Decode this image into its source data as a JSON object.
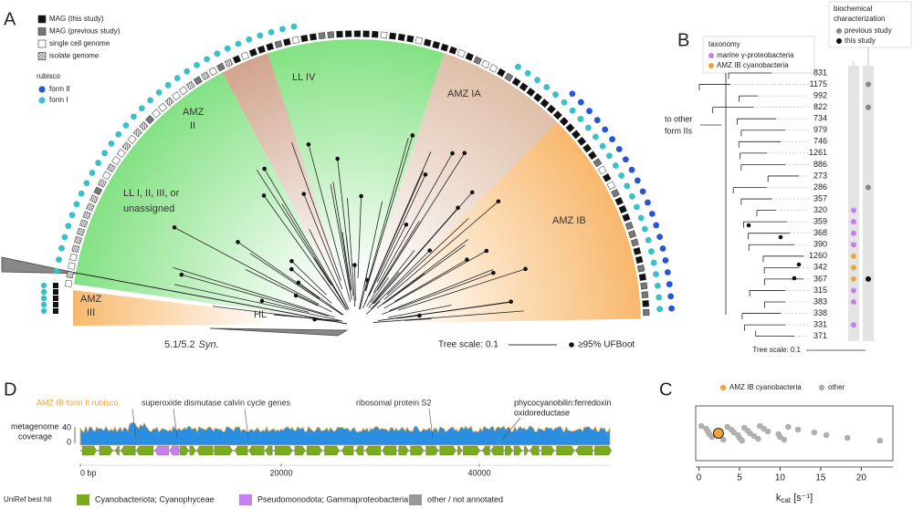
{
  "panel_a": {
    "label": "A",
    "genome_legend": [
      "MAG (this study)",
      "MAG (previous study)",
      "single cell genome",
      "isolate genome"
    ],
    "rubisco_title": "rubisco",
    "rubisco_legend": [
      "form II",
      "form I"
    ],
    "clades": {
      "ll_other": [
        "LL I, II, III, or",
        "unassigned"
      ],
      "amz_ii": [
        "AMZ",
        "II"
      ],
      "ll_iv": "LL IV",
      "amz_ia": "AMZ IA",
      "amz_ib": "AMZ IB",
      "amz_iii": [
        "AMZ",
        "III"
      ],
      "hl": "HL"
    },
    "syn": "5.1/5.2",
    "syn_italic": "Syn.",
    "tree_scale": "Tree scale: 0.1",
    "ufboot": "≥95% UFBoot"
  },
  "panel_b": {
    "label": "B",
    "taxonomy_title": "taxonomy",
    "taxonomy": [
      "marine γ-proteobacteria",
      "AMZ IB cyanobacteria"
    ],
    "biochem_title": [
      "biochemical",
      "characterization"
    ],
    "biochem": [
      "previous study",
      "this study"
    ],
    "outgroup": [
      "to other",
      "form IIs"
    ],
    "leaves": [
      {
        "label": "831"
      },
      {
        "label": "1175",
        "biochem": 0
      },
      {
        "label": "992"
      },
      {
        "label": "822",
        "biochem": 0
      },
      {
        "label": "734"
      },
      {
        "label": "979"
      },
      {
        "label": "746"
      },
      {
        "label": "1261"
      },
      {
        "label": "886"
      },
      {
        "label": "273"
      },
      {
        "label": "286",
        "biochem": 0
      },
      {
        "label": "357"
      },
      {
        "label": "320",
        "taxonomy": 0
      },
      {
        "label": "359",
        "taxonomy": 0
      },
      {
        "label": "368",
        "taxonomy": 0
      },
      {
        "label": "390",
        "taxonomy": 0
      },
      {
        "label": "1260",
        "taxonomy": 1
      },
      {
        "label": "342",
        "taxonomy": 1
      },
      {
        "label": "367",
        "taxonomy": 1,
        "biochem": 1
      },
      {
        "label": "315",
        "taxonomy": 0
      },
      {
        "label": "383",
        "taxonomy": 0
      },
      {
        "label": "338"
      },
      {
        "label": "331",
        "taxonomy": 0
      },
      {
        "label": "371"
      }
    ],
    "tree_scale": "Tree scale: 0.1"
  },
  "chart_data": {
    "type": "scatter",
    "panel_label": "C",
    "series": [
      {
        "name": "AMZ IB cyanobacteria",
        "color": "#f2a33a",
        "values": [
          2.4
        ]
      },
      {
        "name": "other",
        "color": "#b0b0b0",
        "values": [
          0.3,
          0.9,
          1.1,
          1.3,
          1.6,
          3.0,
          3.5,
          4.0,
          4.3,
          4.8,
          5.0,
          5.3,
          5.6,
          6.0,
          6.3,
          6.8,
          7.3,
          7.5,
          8.0,
          8.5,
          9.8,
          10.0,
          10.5,
          11.0,
          12.2,
          14.2,
          15.7,
          18.3,
          22.3
        ]
      }
    ],
    "xlim": [
      -0.4,
      23.9
    ],
    "xticks": [
      0,
      5,
      10,
      15,
      20
    ],
    "xlabel_main": "k",
    "xlabel_sub": "cat",
    "xlabel_unit": " [s⁻¹]"
  },
  "panel_d": {
    "label": "D",
    "annotations": [
      "AMZ IB form II rubisco",
      "superoxide dismutase",
      "calvin cycle genes",
      "ribosomal protein S2"
    ],
    "pcya": [
      "phycocyanobilin:ferredoxin",
      "oxidoreductase"
    ],
    "coverage_label": [
      "metagenome",
      "coverage"
    ],
    "coverage_ticks": [
      "40",
      "0"
    ],
    "position_ticks": [
      "0 bp",
      "20000",
      "40000"
    ],
    "legend_title": "UniRef best hit",
    "legend": [
      "Cyanobacteriota; Cyanophyceae",
      "Pseudomonodota; Gammaproteobacteria",
      "other / not annotated"
    ]
  }
}
